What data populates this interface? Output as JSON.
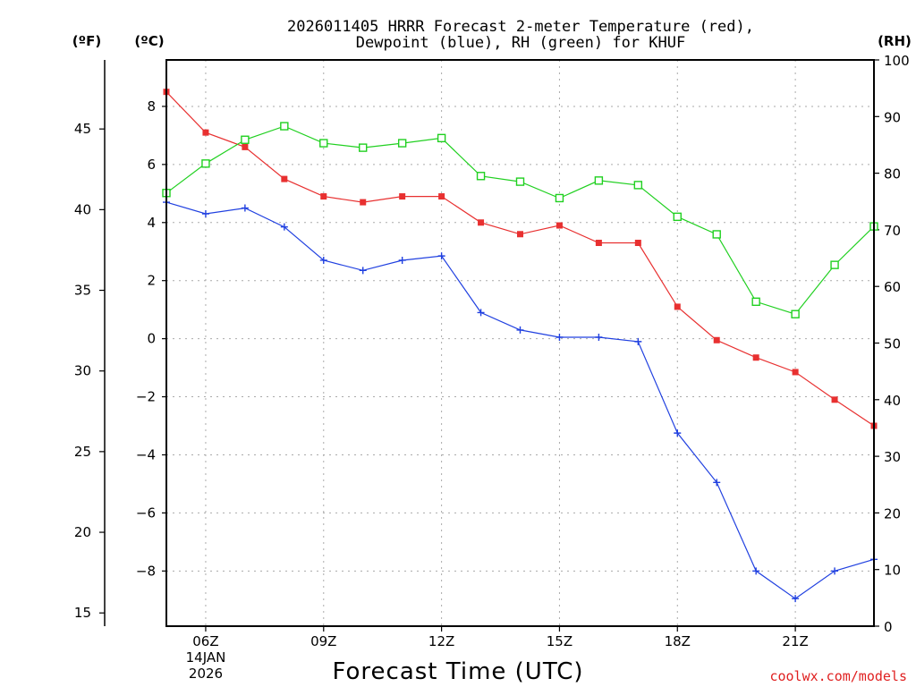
{
  "chart_data": {
    "type": "line",
    "title_line1": "2026011405 HRRR Forecast 2-meter Temperature (red),",
    "title_line2": "Dewpoint (blue), RH (green) for KHUF",
    "xlabel": "Forecast Time (UTC)",
    "unit_f": "(ºF)",
    "unit_c": "(ºC)",
    "unit_rh": "(RH)",
    "credit": "coolwx.com/models",
    "date_label": [
      "14JAN",
      "2026"
    ],
    "x_hours": [
      5,
      6,
      7,
      8,
      9,
      10,
      11,
      12,
      13,
      14,
      15,
      16,
      17,
      18,
      19,
      20,
      21,
      22,
      23
    ],
    "xlim": [
      5,
      23
    ],
    "x_ticks": [
      {
        "hour": 6,
        "label": "06Z"
      },
      {
        "hour": 9,
        "label": "09Z"
      },
      {
        "hour": 12,
        "label": "12Z"
      },
      {
        "hour": 15,
        "label": "15Z"
      },
      {
        "hour": 18,
        "label": "18Z"
      },
      {
        "hour": 21,
        "label": "21Z"
      }
    ],
    "ylim_c": [
      -9.9,
      9.6
    ],
    "ylim_rh": [
      0,
      100
    ],
    "yticks_c": [
      8,
      6,
      4,
      2,
      0,
      -2,
      -4,
      -6,
      -8
    ],
    "yticks_c_labels": [
      "8",
      "6",
      "4",
      "2",
      "0",
      "−2",
      "−4",
      "−6",
      "−8"
    ],
    "yticks_f": [
      45,
      40,
      35,
      30,
      25,
      20,
      15
    ],
    "yticks_f_labels": [
      "45",
      "40",
      "35",
      "30",
      "25",
      "20",
      "15"
    ],
    "yticks_rh": [
      100,
      90,
      80,
      70,
      60,
      50,
      40,
      30,
      20,
      10,
      0
    ],
    "yticks_rh_labels": [
      "100",
      "90",
      "80",
      "70",
      "60",
      "50",
      "40",
      "30",
      "20",
      "10",
      "0"
    ],
    "series": [
      {
        "name": "2-meter Temperature",
        "axis": "c",
        "color": "#e83030",
        "marker": "filled-square",
        "values": [
          8.5,
          7.1,
          6.6,
          5.5,
          4.9,
          4.7,
          4.9,
          4.9,
          4.0,
          3.6,
          3.9,
          3.3,
          3.3,
          1.1,
          -0.05,
          -0.65,
          -1.15,
          -2.1,
          -3.0
        ]
      },
      {
        "name": "Dewpoint",
        "axis": "c",
        "color": "#2040e0",
        "marker": "plus",
        "values": [
          4.7,
          4.3,
          4.5,
          3.85,
          2.7,
          2.35,
          2.7,
          2.85,
          0.9,
          0.3,
          0.05,
          0.05,
          -0.1,
          -3.25,
          -4.95,
          -8.0,
          -8.95,
          -8.0,
          -7.6
        ]
      },
      {
        "name": "RH",
        "axis": "rh",
        "color": "#20d020",
        "marker": "open-square",
        "values": [
          76.5,
          81.7,
          85.9,
          88.3,
          85.3,
          84.5,
          85.3,
          86.2,
          79.5,
          78.5,
          75.6,
          78.7,
          77.9,
          72.3,
          69.2,
          57.3,
          55.1,
          63.8,
          70.6
        ]
      }
    ]
  }
}
